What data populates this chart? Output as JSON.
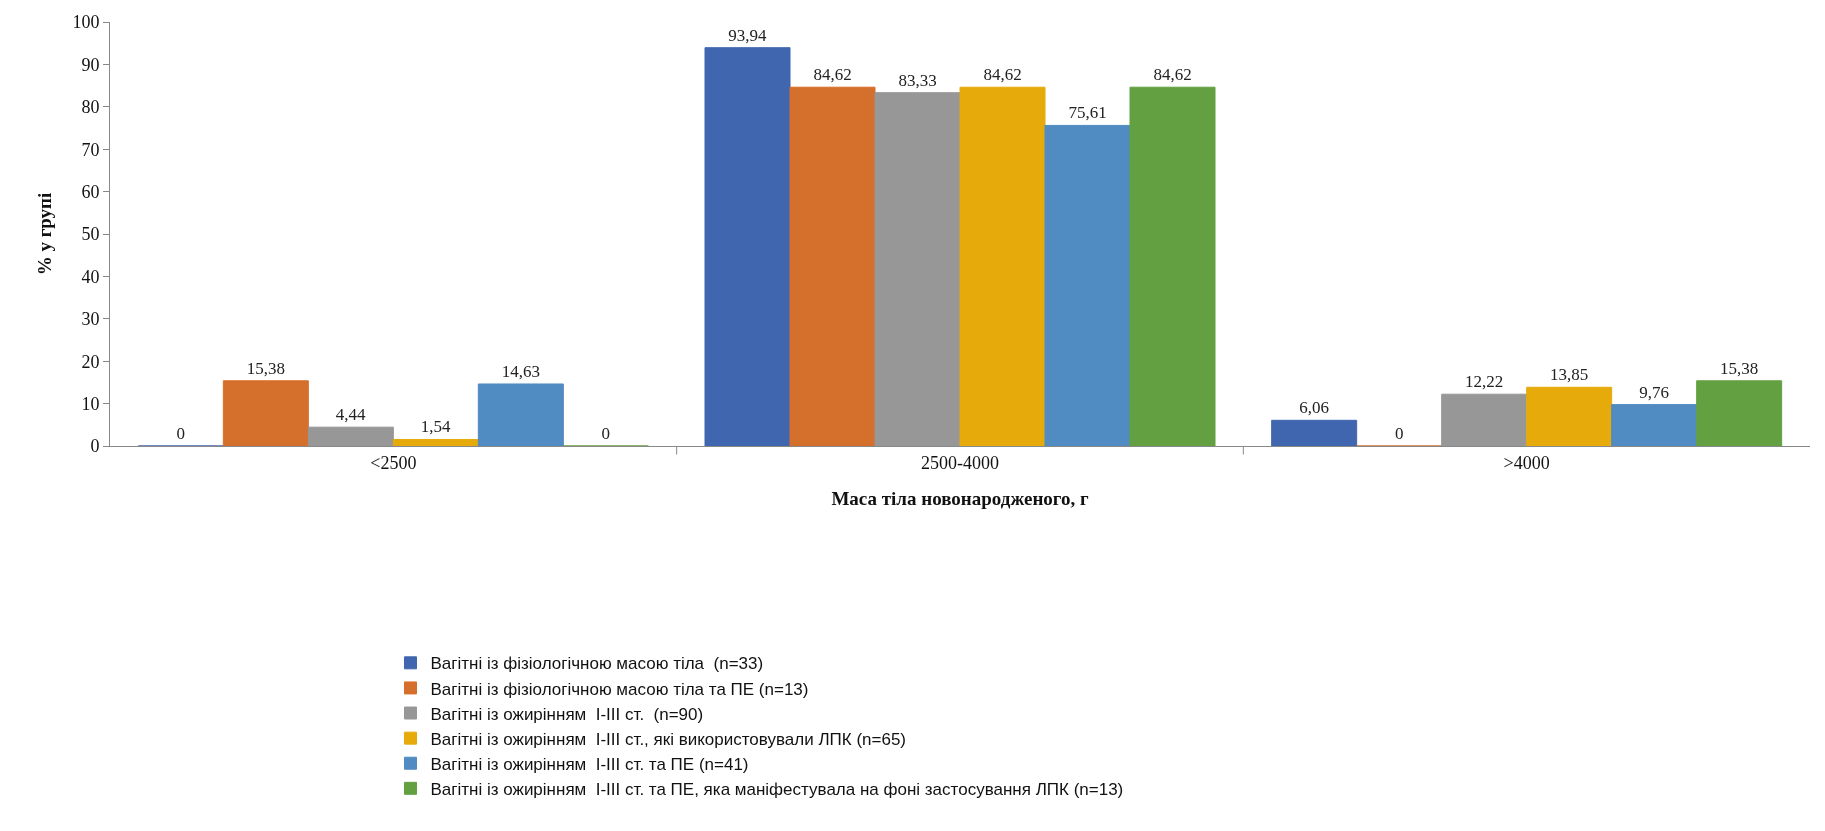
{
  "chart_data": {
    "type": "bar",
    "xlabel": "Маса тіла новонародженого, г",
    "ylabel": "% у групі",
    "categories": [
      "<2500",
      "2500-4000",
      ">4000"
    ],
    "series": [
      {
        "name": "Вагітні із фізіологічною масою тіла  (n=33)",
        "color": "#3f66ae",
        "values": [
          0,
          93.94,
          6.06
        ],
        "value_labels": [
          "0",
          "93,94",
          "6,06"
        ]
      },
      {
        "name": "Вагітні із фізіологічною масою тіла та ПЕ (n=13)",
        "color": "#d56f2c",
        "values": [
          15.38,
          84.62,
          0
        ],
        "value_labels": [
          "15,38",
          "84,62",
          "0"
        ]
      },
      {
        "name": "Вагітні із ожирінням  І-ІІІ ст.  (n=90)",
        "color": "#979797",
        "values": [
          4.44,
          83.33,
          12.22
        ],
        "value_labels": [
          "4,44",
          "83,33",
          "12,22"
        ]
      },
      {
        "name": "Вагітні із ожирінням  І-ІІІ ст., які використовували ЛПК (n=65)",
        "color": "#e6ab0b",
        "values": [
          1.54,
          84.62,
          13.85
        ],
        "value_labels": [
          "1,54",
          "84,62",
          "13,85"
        ]
      },
      {
        "name": "Вагітні із ожирінням  І-ІІІ ст. та ПЕ (n=41)",
        "color": "#508bc2",
        "values": [
          14.63,
          75.61,
          9.76
        ],
        "value_labels": [
          "14,63",
          "75,61",
          "9,76"
        ]
      },
      {
        "name": "Вагітні із ожирінням  І-ІІІ ст. та ПЕ, яка маніфестувала на фоні застосування ЛПК (n=13)",
        "color": "#63a042",
        "values": [
          0,
          84.62,
          15.38
        ],
        "value_labels": [
          "0",
          "84,62",
          "15,38"
        ]
      }
    ],
    "ylim": [
      0,
      100
    ],
    "yticks": [
      0,
      10,
      20,
      30,
      40,
      50,
      60,
      70,
      80,
      90,
      100
    ],
    "legend": "bottom"
  }
}
